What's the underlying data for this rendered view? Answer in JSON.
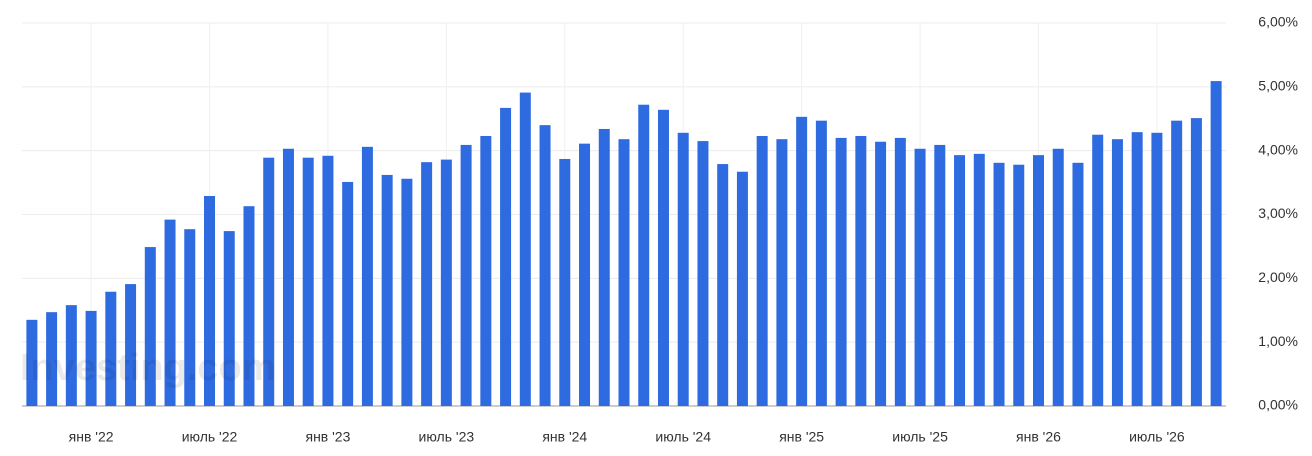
{
  "chart_data": {
    "type": "bar",
    "watermark": "Investing.com",
    "color": "#2f6be0",
    "grid": true,
    "categories": [
      null,
      null,
      null,
      "янв '22",
      null,
      null,
      null,
      null,
      null,
      "июль '22",
      null,
      null,
      null,
      null,
      null,
      "янв '23",
      null,
      null,
      null,
      null,
      null,
      "июль '23",
      null,
      null,
      null,
      null,
      null,
      "янв '24",
      null,
      null,
      null,
      null,
      null,
      "июль '24",
      null,
      null,
      null,
      null,
      null,
      "янв '25",
      null,
      null,
      null,
      null,
      null,
      "июль '25",
      null,
      null,
      null,
      null,
      null,
      "янв '26",
      null,
      null,
      null,
      null,
      null,
      "июль '26",
      null,
      null,
      null
    ],
    "values": [
      1.35,
      1.47,
      1.58,
      1.49,
      1.79,
      1.91,
      2.49,
      2.92,
      2.77,
      3.29,
      2.74,
      3.13,
      3.89,
      4.03,
      3.89,
      3.92,
      3.51,
      4.06,
      3.62,
      3.56,
      3.82,
      3.86,
      4.09,
      4.23,
      4.67,
      4.91,
      4.4,
      3.87,
      4.11,
      4.34,
      4.18,
      4.72,
      4.64,
      4.28,
      4.15,
      3.79,
      3.67,
      4.23,
      4.18,
      4.53,
      4.47,
      4.2,
      4.23,
      4.14,
      4.2,
      4.03,
      4.09,
      3.93,
      3.95,
      3.81,
      3.78,
      3.93,
      4.03,
      3.81,
      4.25,
      4.18,
      4.29,
      4.28,
      4.47,
      4.51,
      5.09
    ],
    "ylim": [
      0,
      6
    ],
    "yticks": [
      {
        "value": 0,
        "label": "0,00%"
      },
      {
        "value": 1,
        "label": "1,00%"
      },
      {
        "value": 2,
        "label": "2,00%"
      },
      {
        "value": 3,
        "label": "3,00%"
      },
      {
        "value": 4,
        "label": "4,00%"
      },
      {
        "value": 5,
        "label": "5,00%"
      },
      {
        "value": 6,
        "label": "6,00%"
      }
    ]
  }
}
